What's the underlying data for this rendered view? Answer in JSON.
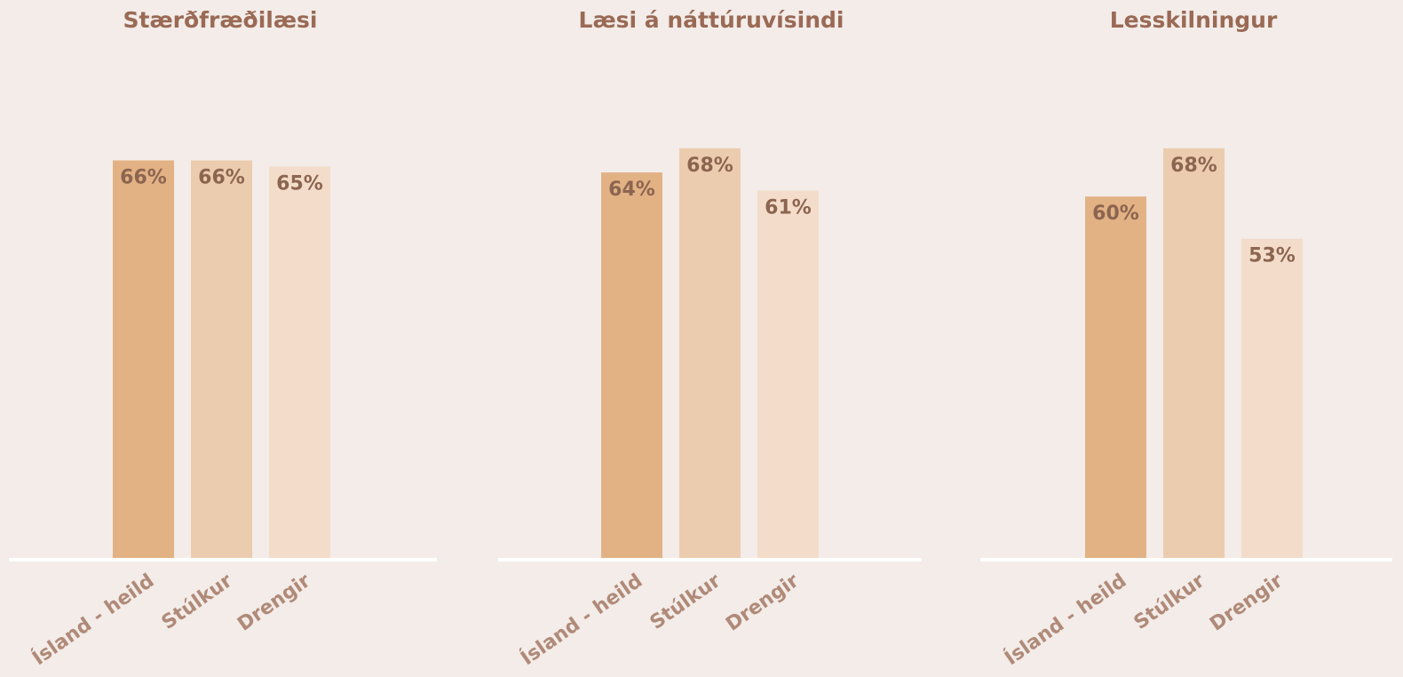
{
  "chart_data": [
    {
      "type": "bar",
      "title": "Stærðfræðilæsi",
      "categories": [
        "Ísland - heild",
        "Stúlkur",
        "Drengir"
      ],
      "values": [
        66,
        66,
        65
      ],
      "value_labels": [
        "66%",
        "66%",
        "65%"
      ],
      "colors": [
        "#e2b285",
        "#ecccae",
        "#f3ddca"
      ]
    },
    {
      "type": "bar",
      "title": "Læsi á náttúruvísindi",
      "categories": [
        "Ísland - heild",
        "Stúlkur",
        "Drengir"
      ],
      "values": [
        64,
        68,
        61
      ],
      "value_labels": [
        "64%",
        "68%",
        "61%"
      ],
      "colors": [
        "#e2b285",
        "#ecccae",
        "#f3ddca"
      ]
    },
    {
      "type": "bar",
      "title": "Lesskilningur",
      "categories": [
        "Ísland - heild",
        "Stúlkur",
        "Drengir"
      ],
      "values": [
        60,
        68,
        53
      ],
      "value_labels": [
        "60%",
        "68%",
        "53%"
      ],
      "colors": [
        "#e2b285",
        "#ecccae",
        "#f3ddca"
      ]
    }
  ]
}
